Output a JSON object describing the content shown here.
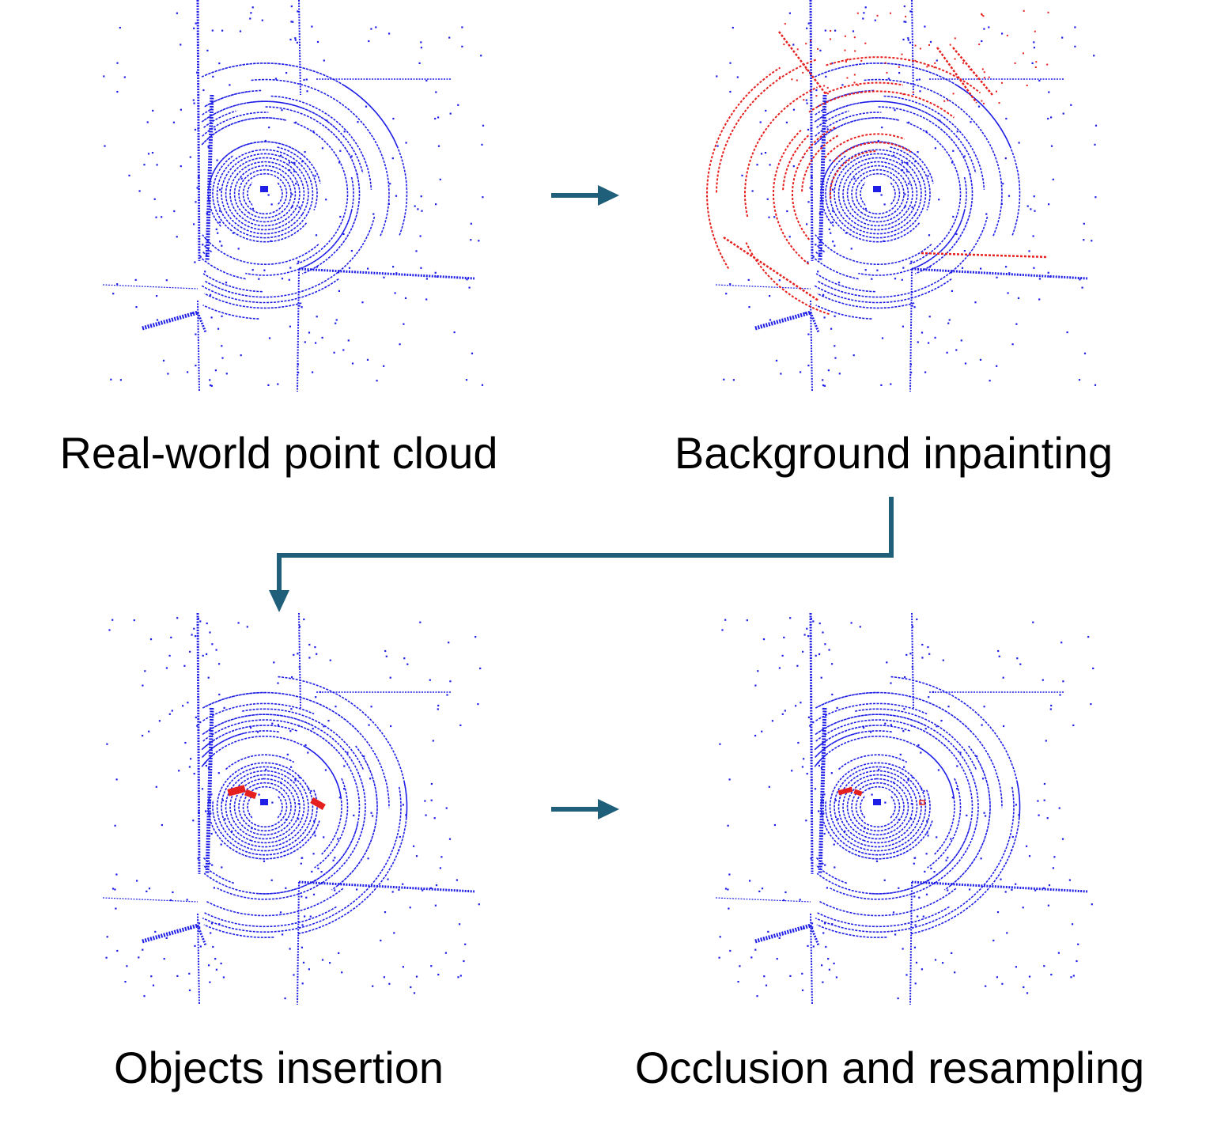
{
  "figure": {
    "panels": [
      {
        "caption": "Real-world point cloud",
        "red_overlay": "none"
      },
      {
        "caption": "Background inpainting",
        "red_overlay": "inpainted-background"
      },
      {
        "caption": "Objects insertion",
        "red_overlay": "inserted-objects"
      },
      {
        "caption": "Occlusion and resampling",
        "red_overlay": "resampled-objects"
      }
    ],
    "colors": {
      "points": "#1e1ee6",
      "highlight": "#e6201e",
      "arrow": "#1f5f7a",
      "text": "#000000"
    }
  }
}
